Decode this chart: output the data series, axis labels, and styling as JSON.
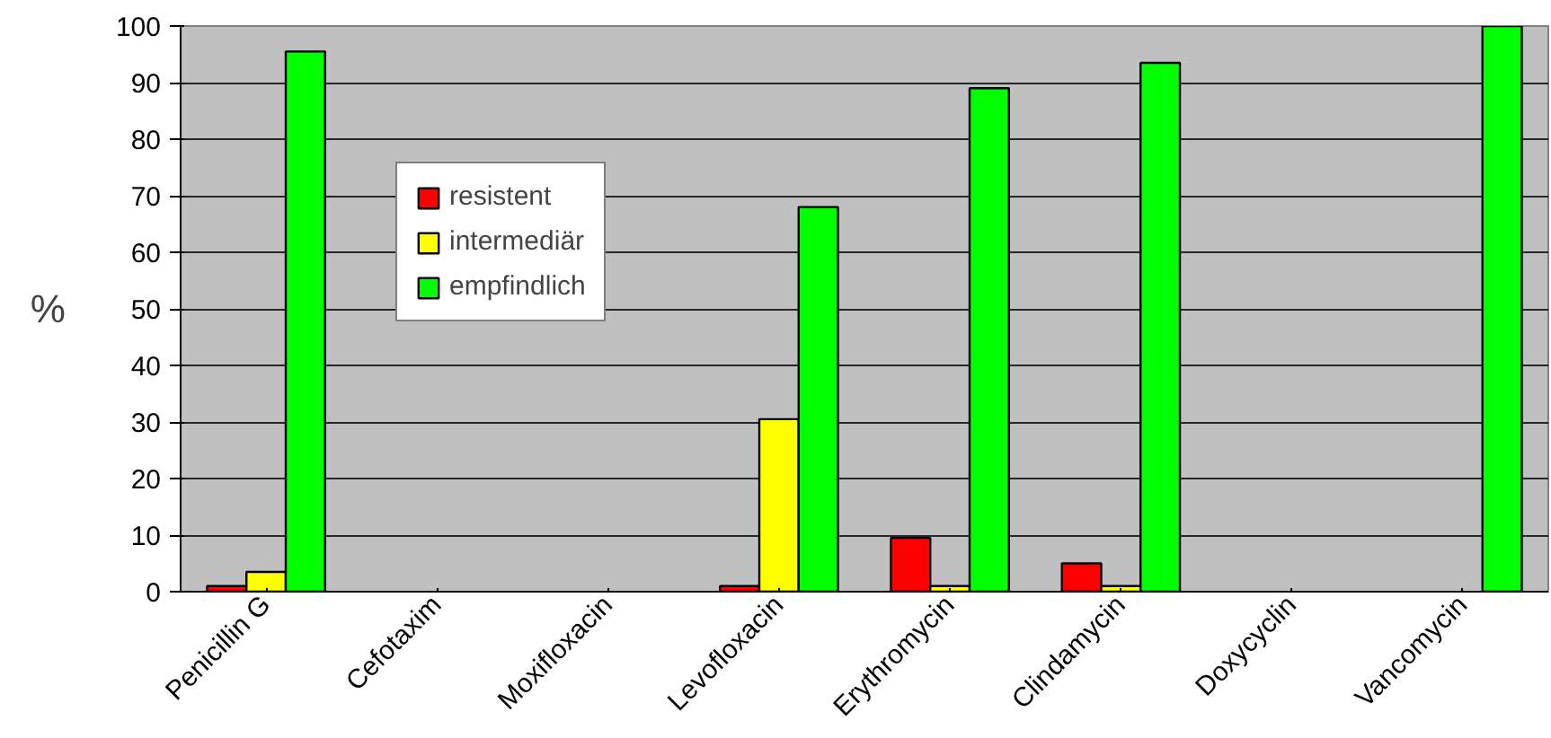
{
  "chart_data": {
    "type": "bar",
    "ylabel": "%",
    "categories": [
      "Penicillin G",
      "Cefotaxim",
      "Moxifloxacin",
      "Levofloxacin",
      "Erythromycin",
      "Clindamycin",
      "Doxycyclin",
      "Vancomycin"
    ],
    "series": [
      {
        "name": "resistent",
        "color": "#ff0000",
        "values": [
          1,
          null,
          null,
          1,
          9.5,
          5,
          null,
          null
        ]
      },
      {
        "name": "intermediär",
        "color": "#ffff00",
        "values": [
          3.5,
          null,
          null,
          30.5,
          1,
          1,
          null,
          null
        ]
      },
      {
        "name": "empfindlich",
        "color": "#00ff00",
        "values": [
          95.5,
          null,
          null,
          68,
          89,
          93.5,
          null,
          100
        ]
      }
    ],
    "ylim": [
      0,
      100
    ],
    "yticks": [
      0,
      10,
      20,
      30,
      40,
      50,
      60,
      70,
      80,
      90,
      100
    ],
    "grid": "y",
    "legend": "top left"
  }
}
